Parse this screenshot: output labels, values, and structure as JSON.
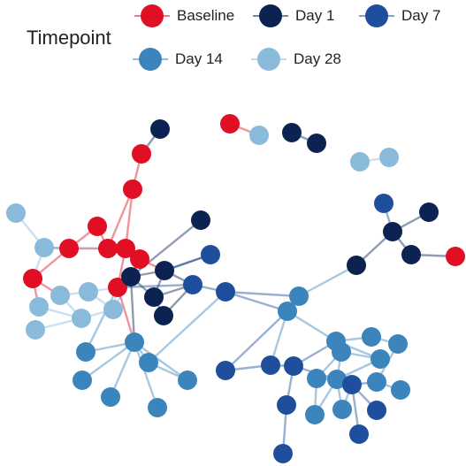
{
  "legend": {
    "title": "Timepoint",
    "items": [
      {
        "key": "baseline",
        "label": "Baseline",
        "color": "#e00f24"
      },
      {
        "key": "day1",
        "label": "Day 1",
        "color": "#0c2352"
      },
      {
        "key": "day7",
        "label": "Day 7",
        "color": "#1f4f9c"
      },
      {
        "key": "day14",
        "label": "Day 14",
        "color": "#3b84bc"
      },
      {
        "key": "day28",
        "label": "Day 28",
        "color": "#8bbbda"
      }
    ]
  },
  "network": {
    "node_count": 81,
    "groups_in_view": [
      "baseline",
      "day1",
      "day7",
      "day14",
      "day28"
    ]
  }
}
